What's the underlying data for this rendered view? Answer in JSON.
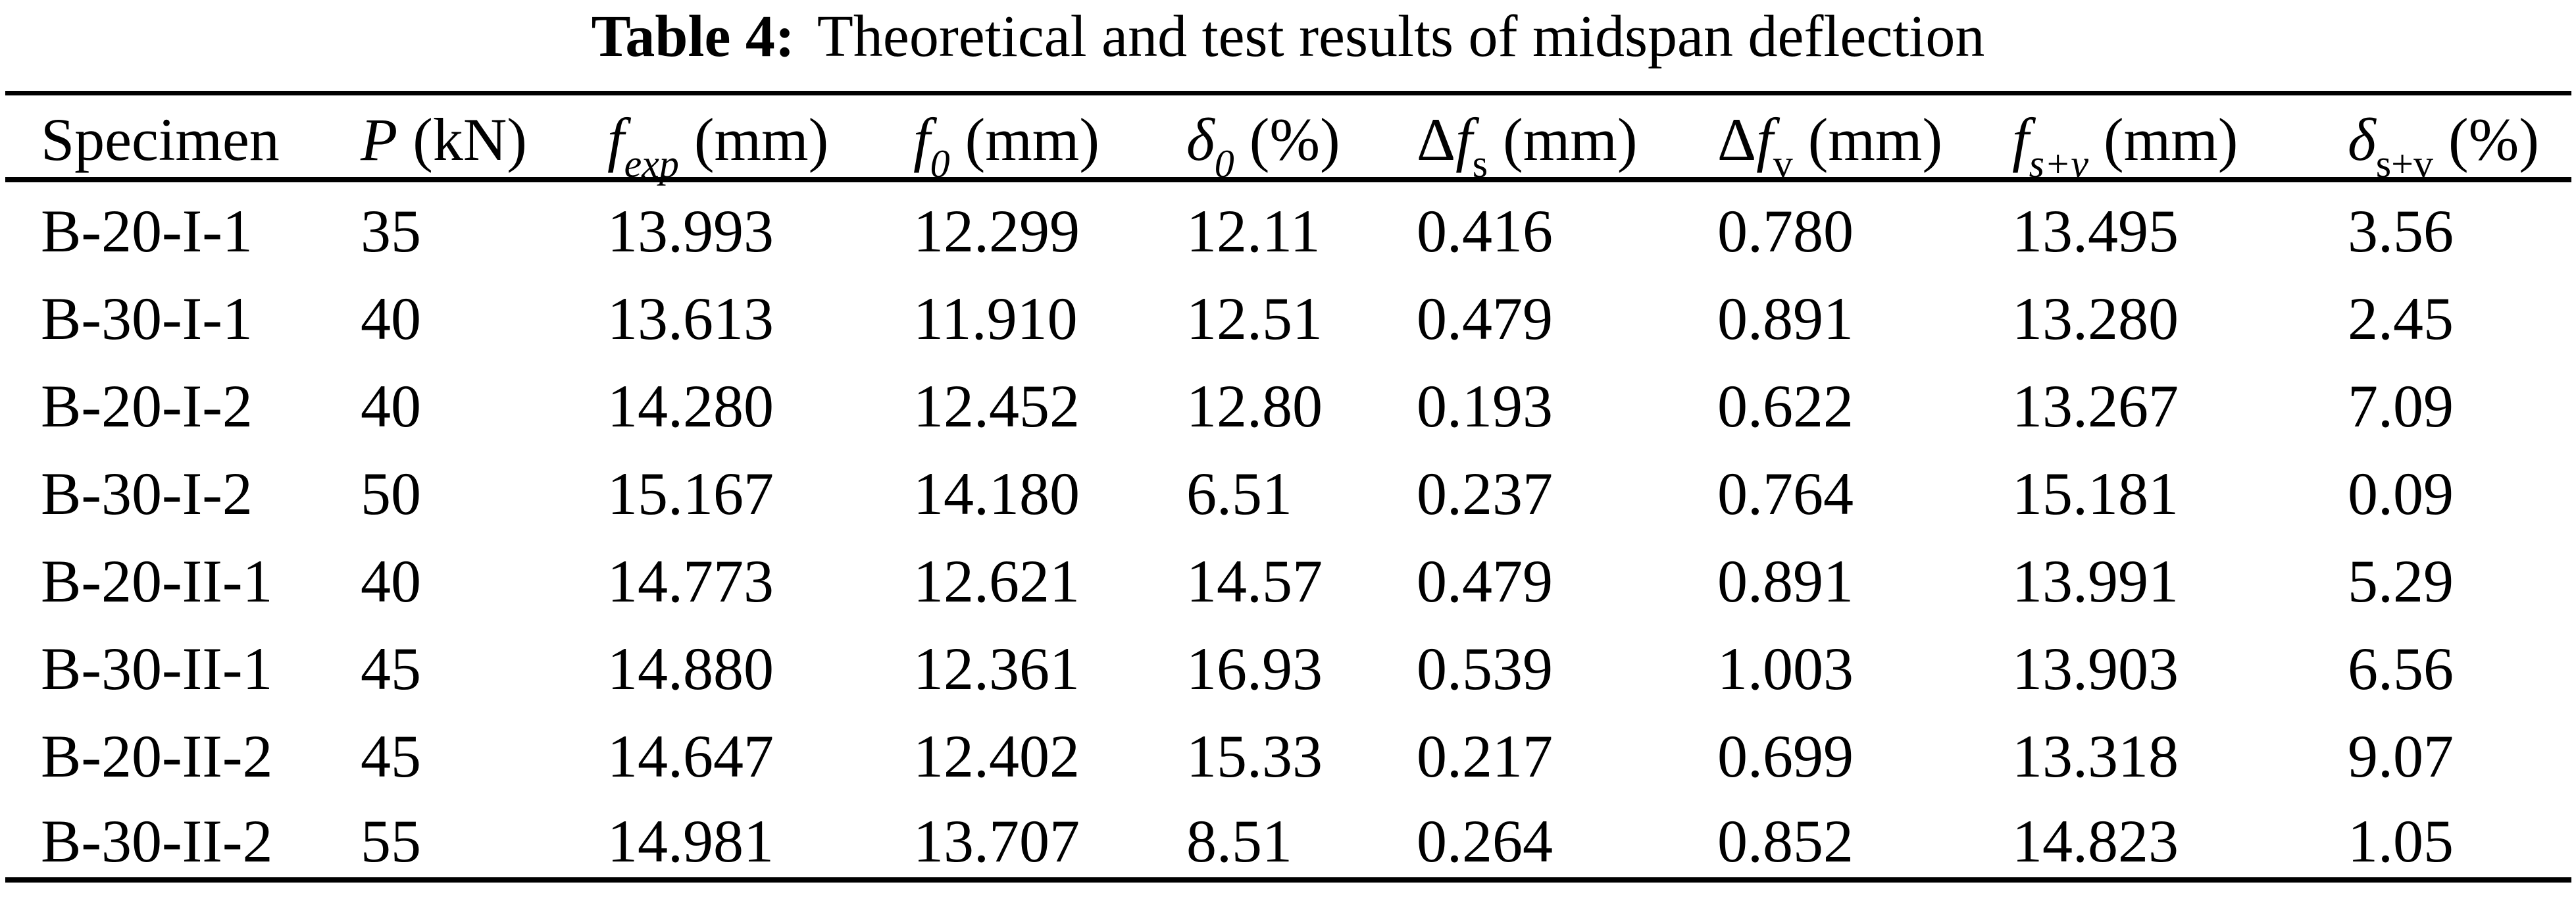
{
  "title": {
    "label": "Table 4:",
    "caption": "Theoretical and test results of midspan deflection"
  },
  "colors": {
    "text": "#000000",
    "background": "#ffffff",
    "rule": "#000000"
  },
  "table": {
    "columns": [
      {
        "name": "specimen",
        "segments": [
          {
            "t": "Specimen",
            "s": "rm"
          }
        ]
      },
      {
        "name": "load",
        "segments": [
          {
            "t": "P",
            "s": "it"
          },
          {
            "t": " (kN)",
            "s": "rm"
          }
        ]
      },
      {
        "name": "f-exp",
        "segments": [
          {
            "t": "f",
            "s": "it"
          },
          {
            "t": "exp",
            "s": "itsub"
          },
          {
            "t": " (mm)",
            "s": "rm"
          }
        ]
      },
      {
        "name": "f-0",
        "segments": [
          {
            "t": "f",
            "s": "it"
          },
          {
            "t": "0",
            "s": "itsub"
          },
          {
            "t": " (mm)",
            "s": "rm"
          }
        ]
      },
      {
        "name": "delta-0",
        "segments": [
          {
            "t": "δ",
            "s": "it"
          },
          {
            "t": "0",
            "s": "itsub"
          },
          {
            "t": " (%)",
            "s": "rm"
          }
        ]
      },
      {
        "name": "delta-f-s",
        "segments": [
          {
            "t": "Δ",
            "s": "rm"
          },
          {
            "t": "f",
            "s": "it"
          },
          {
            "t": "s",
            "s": "rmsub"
          },
          {
            "t": " (mm)",
            "s": "rm"
          }
        ]
      },
      {
        "name": "delta-f-v",
        "segments": [
          {
            "t": "Δ",
            "s": "rm"
          },
          {
            "t": "f",
            "s": "it"
          },
          {
            "t": "v",
            "s": "rmsub"
          },
          {
            "t": " (mm)",
            "s": "rm"
          }
        ]
      },
      {
        "name": "f-s-plus-v",
        "segments": [
          {
            "t": "f",
            "s": "it"
          },
          {
            "t": "s+v",
            "s": "itsub"
          },
          {
            "t": " (mm)",
            "s": "rm"
          }
        ]
      },
      {
        "name": "delta-s-plus-v",
        "segments": [
          {
            "t": "δ",
            "s": "it"
          },
          {
            "t": "s+v",
            "s": "rmsub"
          },
          {
            "t": " (%)",
            "s": "rm"
          }
        ]
      }
    ],
    "rows": [
      [
        "B-20-I-1",
        "35",
        "13.993",
        "12.299",
        "12.11",
        "0.416",
        "0.780",
        "13.495",
        "3.56"
      ],
      [
        "B-30-I-1",
        "40",
        "13.613",
        "11.910",
        "12.51",
        "0.479",
        "0.891",
        "13.280",
        "2.45"
      ],
      [
        "B-20-I-2",
        "40",
        "14.280",
        "12.452",
        "12.80",
        "0.193",
        "0.622",
        "13.267",
        "7.09"
      ],
      [
        "B-30-I-2",
        "50",
        "15.167",
        "14.180",
        "6.51",
        "0.237",
        "0.764",
        "15.181",
        "0.09"
      ],
      [
        "B-20-II-1",
        "40",
        "14.773",
        "12.621",
        "14.57",
        "0.479",
        "0.891",
        "13.991",
        "5.29"
      ],
      [
        "B-30-II-1",
        "45",
        "14.880",
        "12.361",
        "16.93",
        "0.539",
        "1.003",
        "13.903",
        "6.56"
      ],
      [
        "B-20-II-2",
        "45",
        "14.647",
        "12.402",
        "15.33",
        "0.217",
        "0.699",
        "13.318",
        "9.07"
      ],
      [
        "B-30-II-2",
        "55",
        "14.981",
        "13.707",
        "8.51",
        "0.264",
        "0.852",
        "14.823",
        "1.05"
      ]
    ]
  }
}
